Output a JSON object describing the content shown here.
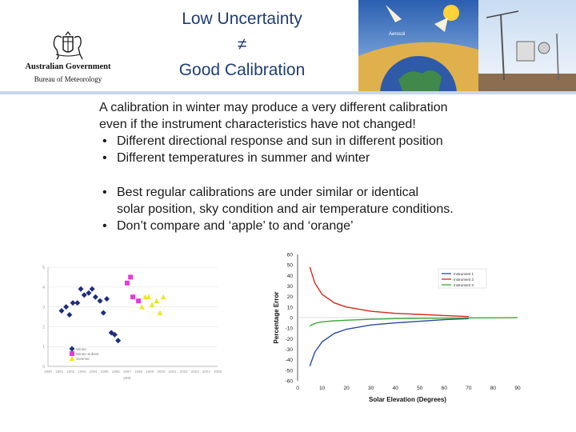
{
  "header": {
    "logo_line1": "Australian Government",
    "logo_line2": "Bureau of Meteorology",
    "title_line1": "Low Uncertainty",
    "title_line2": "≠",
    "title_line3": "Good Calibration",
    "image_label": "Aerosol",
    "crest_icon": "coat-of-arms-icon",
    "colors": {
      "title": "#1f3f74",
      "divider": "#c9d7ea"
    }
  },
  "body": {
    "intro_line1": "A calibration in winter may produce a very different calibration",
    "intro_line2": "even if the instrument characteristics have not changed!",
    "bullets_a": [
      "Different directional response and sun in different position",
      "Different temperatures in summer and winter"
    ],
    "bullet_b1_line1": "Best regular calibrations are under similar or identical",
    "bullet_b1_line2": "solar position, sky condition and air temperature conditions.",
    "bullet_b2": "Don’t compare and ‘apple’ to and ‘orange’",
    "bullet_char": "•"
  },
  "chart_data": [
    {
      "type": "scatter",
      "title": "",
      "xlabel": "year",
      "ylabel": "",
      "xlim": [
        1990,
        2005
      ],
      "ylim": [
        0,
        5
      ],
      "x_ticks": [
        "1990",
        "1991",
        "1992",
        "1993",
        "1994",
        "1995",
        "1996",
        "1997",
        "1998",
        "1999",
        "2000",
        "2001",
        "2002",
        "2003",
        "2004",
        "2005"
      ],
      "y_ticks": [
        "0",
        "1",
        "2",
        "3",
        "4",
        "5"
      ],
      "legend": "bottom-left",
      "series": [
        {
          "name": "Winter",
          "color": "#1f2d7a",
          "marker": "diamond",
          "points": [
            [
              1991.2,
              2.8
            ],
            [
              1991.6,
              3.0
            ],
            [
              1991.9,
              2.6
            ],
            [
              1992.2,
              3.2
            ],
            [
              1992.6,
              3.2
            ],
            [
              1992.9,
              3.9
            ],
            [
              1993.2,
              3.6
            ],
            [
              1993.6,
              3.7
            ],
            [
              1993.9,
              3.9
            ],
            [
              1994.2,
              3.5
            ],
            [
              1994.6,
              3.3
            ],
            [
              1994.9,
              2.7
            ],
            [
              1995.2,
              3.4
            ],
            [
              1995.6,
              1.7
            ],
            [
              1995.9,
              1.6
            ],
            [
              1996.2,
              1.3
            ]
          ]
        },
        {
          "name": "Winter Subset",
          "color": "#e33dd6",
          "marker": "square",
          "points": [
            [
              1997.0,
              4.2
            ],
            [
              1997.3,
              4.5
            ],
            [
              1997.5,
              3.5
            ],
            [
              1998.0,
              3.3
            ]
          ]
        },
        {
          "name": "Summer",
          "color": "#ece72c",
          "marker": "triangle",
          "points": [
            [
              1998.3,
              3.0
            ],
            [
              1998.6,
              3.5
            ],
            [
              1998.9,
              3.5
            ],
            [
              1999.2,
              3.1
            ],
            [
              1999.6,
              3.3
            ],
            [
              1999.9,
              2.7
            ],
            [
              2000.2,
              3.5
            ]
          ]
        }
      ]
    },
    {
      "type": "line",
      "title": "",
      "xlabel": "Solar Elevation (Degrees)",
      "ylabel": "Percentage Error",
      "xlim": [
        0,
        90
      ],
      "ylim": [
        -60,
        60
      ],
      "x_ticks": [
        0,
        10,
        20,
        30,
        40,
        50,
        60,
        70,
        80,
        90
      ],
      "y_ticks": [
        60,
        50,
        40,
        30,
        20,
        10,
        0,
        -10,
        -20,
        -30,
        -40,
        -50,
        -60
      ],
      "legend": "top-right",
      "series": [
        {
          "name": "Instrument 1",
          "color": "#2c4aa0",
          "x": [
            5,
            7,
            10,
            15,
            20,
            30,
            40,
            50,
            60,
            70
          ],
          "y": [
            -46,
            -33,
            -23,
            -15,
            -11,
            -7,
            -5,
            -3.5,
            -2,
            -1
          ]
        },
        {
          "name": "Instrument 2",
          "color": "#d42a1e",
          "x": [
            5,
            7,
            10,
            15,
            20,
            30,
            40,
            50,
            60,
            70
          ],
          "y": [
            48,
            33,
            22,
            14,
            10,
            6,
            4,
            3,
            2,
            1
          ]
        },
        {
          "name": "Instrument 3",
          "color": "#3daa3d",
          "x": [
            5,
            7,
            10,
            15,
            20,
            30,
            40,
            50,
            60,
            70,
            80,
            90
          ],
          "y": [
            -8,
            -5.5,
            -4,
            -3,
            -2.5,
            -1.5,
            -1,
            -0.7,
            -0.5,
            -0.3,
            -0.2,
            -0.1
          ]
        }
      ]
    }
  ]
}
